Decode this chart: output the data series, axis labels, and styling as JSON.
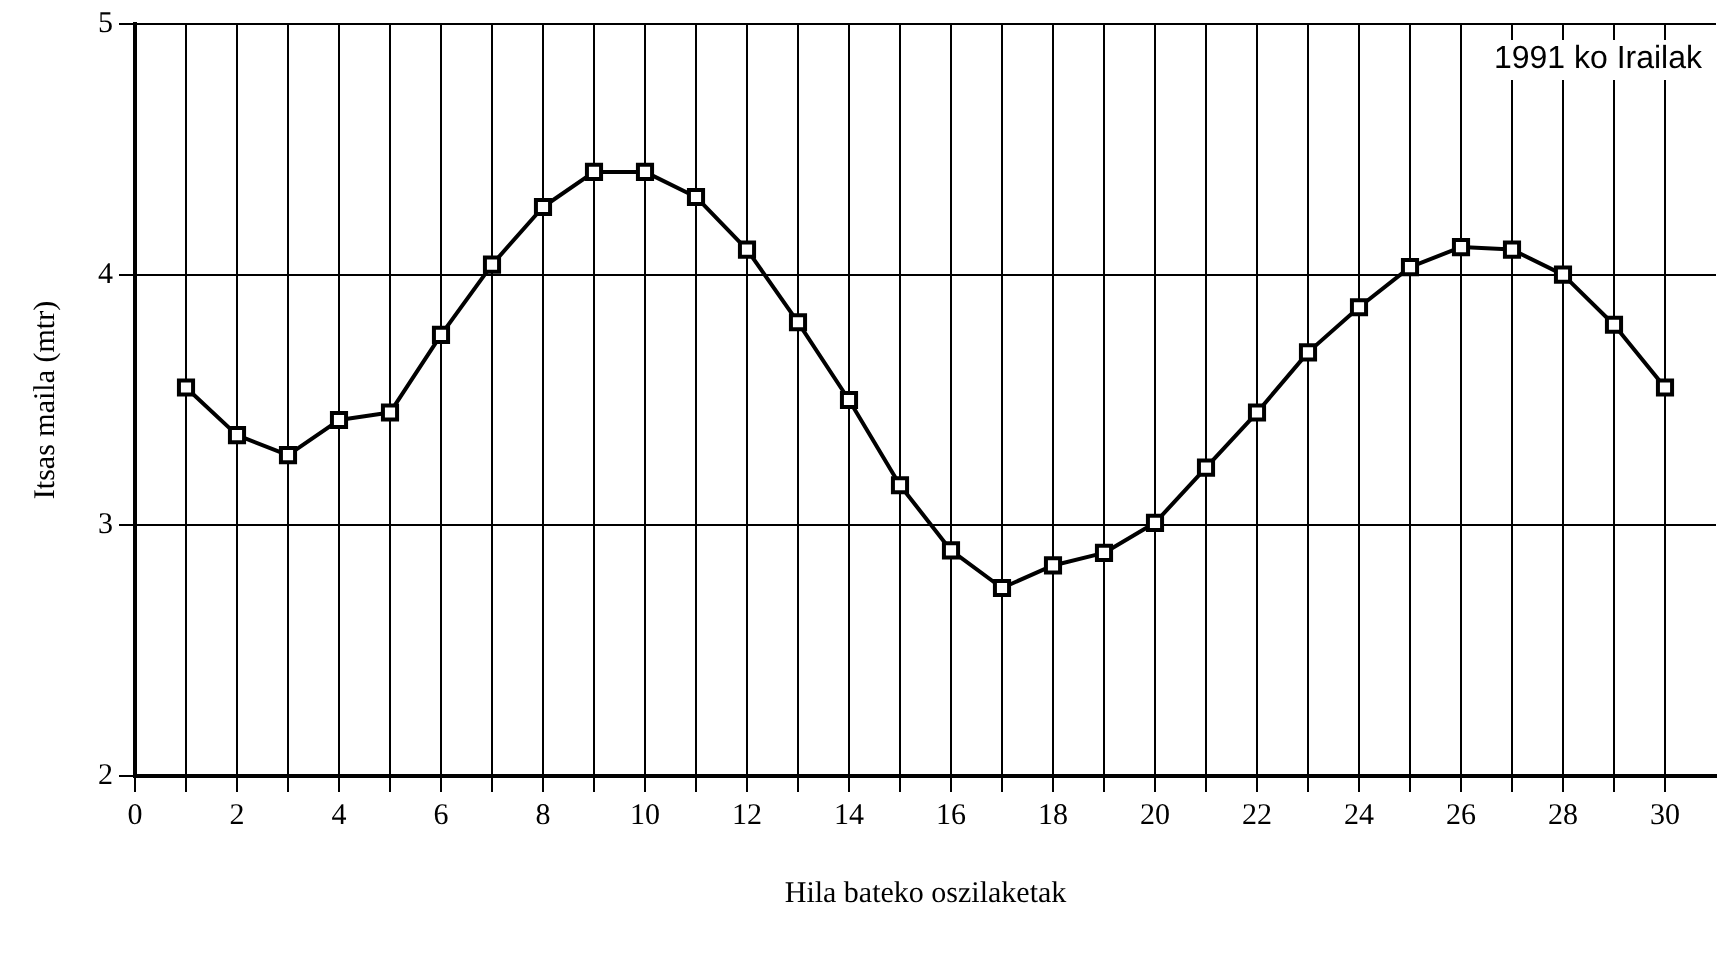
{
  "chart_data": {
    "type": "line",
    "xlabel": "Hila bateko oszilaketak",
    "ylabel": "Itsas maila (mtr)",
    "annotations": [
      "1991 ko Irailak"
    ],
    "x": [
      1,
      2,
      3,
      4,
      5,
      6,
      7,
      8,
      9,
      10,
      11,
      12,
      13,
      14,
      15,
      16,
      17,
      18,
      19,
      20,
      21,
      22,
      23,
      24,
      25,
      26,
      27,
      28,
      29,
      30
    ],
    "series": [
      {
        "color": "#000000",
        "values": [
          3.55,
          3.36,
          3.28,
          3.42,
          3.45,
          3.76,
          4.04,
          4.27,
          4.41,
          4.41,
          4.31,
          4.1,
          3.81,
          3.5,
          3.16,
          2.9,
          2.75,
          2.84,
          2.89,
          3.01,
          3.23,
          3.45,
          3.69,
          3.87,
          4.03,
          4.11,
          4.1,
          4.0,
          3.8,
          3.55
        ]
      }
    ],
    "xlim": [
      0,
      31
    ],
    "xticks": [
      0,
      {
        "value": 1,
        "label": null
      },
      2,
      {
        "value": 3,
        "label": null
      },
      4,
      {
        "value": 5,
        "label": null
      },
      6,
      {
        "value": 7,
        "label": null
      },
      8,
      {
        "value": 9,
        "label": null
      },
      10,
      {
        "value": 11,
        "label": null
      },
      12,
      {
        "value": 13,
        "label": null
      },
      14,
      {
        "value": 15,
        "label": null
      },
      16,
      {
        "value": 17,
        "label": null
      },
      18,
      {
        "value": 19,
        "label": null
      },
      20,
      {
        "value": 21,
        "label": null
      },
      22,
      {
        "value": 23,
        "label": null
      },
      24,
      {
        "value": 25,
        "label": null
      },
      26,
      {
        "value": 27,
        "label": null
      },
      28,
      {
        "value": 29,
        "label": null
      },
      30
    ],
    "ylim": [
      2,
      5
    ],
    "yticks": [
      2,
      3,
      4,
      5
    ],
    "grid": true,
    "legend": false,
    "marker": "square",
    "line_style": "solid"
  }
}
